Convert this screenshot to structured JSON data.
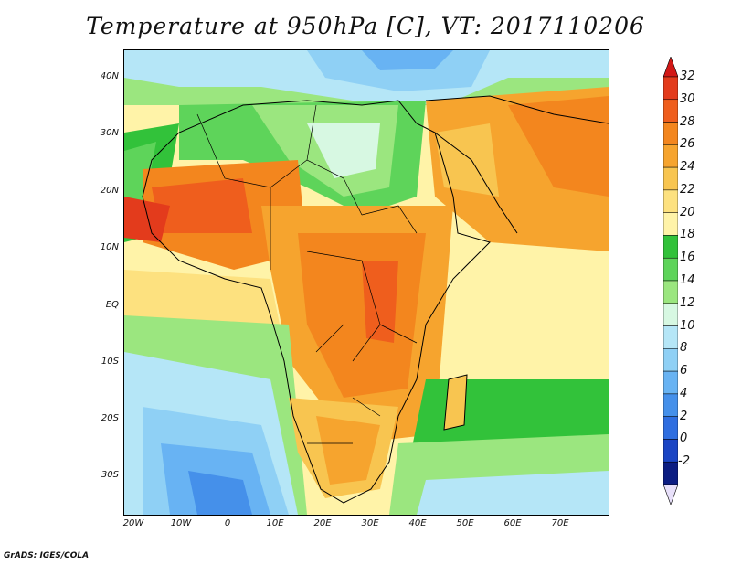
{
  "title": "Temperature at 950hPa [C], VT: 2017110206",
  "credit": "GrADS: IGES/COLA",
  "lat_ticks": [
    "40N",
    "30N",
    "20N",
    "10N",
    "EQ",
    "10S",
    "20S",
    "30S"
  ],
  "lon_ticks": [
    "20W",
    "10W",
    "0",
    "10E",
    "20E",
    "30E",
    "40E",
    "50E",
    "60E",
    "70E"
  ],
  "colorbar": {
    "labels": [
      "32",
      "30",
      "28",
      "26",
      "24",
      "22",
      "20",
      "18",
      "16",
      "14",
      "12",
      "10",
      "8",
      "6",
      "4",
      "2",
      "0",
      "-2"
    ],
    "colors": [
      "#e33b1c",
      "#ef5e1d",
      "#f3861e",
      "#f6a42e",
      "#f8c550",
      "#fde17f",
      "#fff3a8",
      "#32c23a",
      "#5ed45a",
      "#9be67f",
      "#d7f8e2",
      "#b5e6f7",
      "#8fd0f5",
      "#68b3f3",
      "#4590ea",
      "#2f6ee0",
      "#1b45c4",
      "#0c1d82"
    ],
    "over_color": "#d21816",
    "under_color": "#e8e0fa"
  },
  "colors": {
    "ocean_warm": "#fff3a8",
    "land_border": "#000000"
  }
}
